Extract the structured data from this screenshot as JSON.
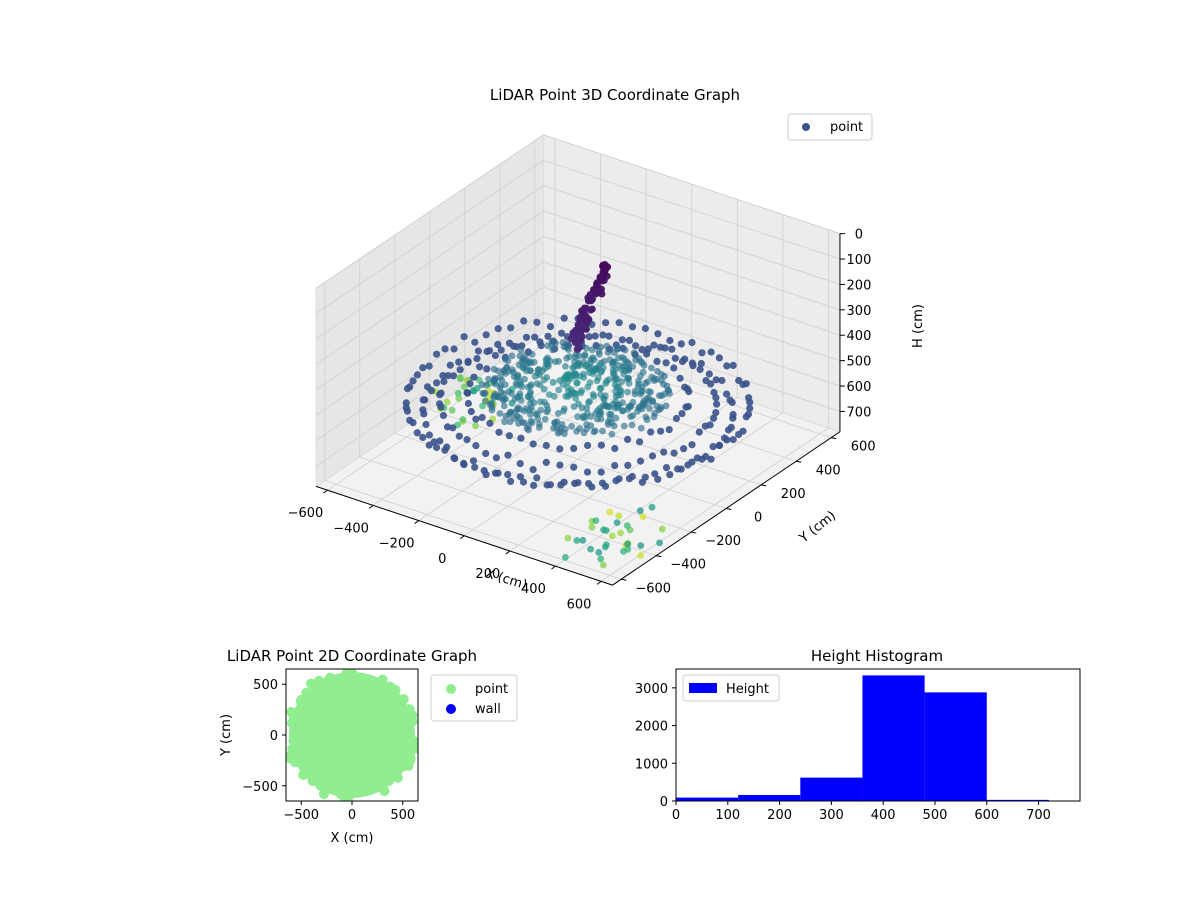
{
  "chart_data": [
    {
      "type": "scatter",
      "title": "LiDAR Point 3D Coordinate Graph",
      "xlabel": "X (cm)",
      "ylabel": "Y (cm)",
      "zlabel": "H (cm)",
      "xlim": [
        -650,
        650
      ],
      "ylim": [
        -650,
        650
      ],
      "zlim": [
        780,
        0
      ],
      "x_ticks": [
        "−600",
        "−400",
        "−200",
        "0",
        "200",
        "400",
        "600"
      ],
      "y_ticks": [
        "−600",
        "−400",
        "−200",
        "0",
        "200",
        "400",
        "600"
      ],
      "z_ticks": [
        "0",
        "100",
        "200",
        "300",
        "400",
        "500",
        "600",
        "700"
      ],
      "z_inverted": true,
      "grid": true,
      "legend": [
        "point"
      ],
      "legend_position": "upper-right",
      "colormap": "viridis",
      "series": [
        {
          "name": "point",
          "color": "#3b528b",
          "structure": [
            {
              "shape": "ring",
              "radius": 620,
              "height": 560
            },
            {
              "shape": "ring",
              "radius": 560,
              "height": 590
            },
            {
              "shape": "ring",
              "radius": 500,
              "height": 560
            },
            {
              "shape": "ring",
              "radius": 400,
              "height": 530
            },
            {
              "shape": "disk",
              "radius": 350,
              "height": 480
            },
            {
              "shape": "plume",
              "x": [
                -120,
                -80
              ],
              "y": [
                100,
                300
              ],
              "height": [
                180,
                420
              ]
            },
            {
              "shape": "outlier-band",
              "x": [
                -650,
                -350
              ],
              "y": [
                -100,
                150
              ],
              "height": [
                650,
                760
              ]
            },
            {
              "shape": "outlier-band",
              "x": [
                420,
                650
              ],
              "y": [
                -650,
                -300
              ],
              "height": [
                620,
                780
              ]
            }
          ]
        }
      ]
    },
    {
      "type": "scatter",
      "title": "LiDAR Point 2D Coordinate Graph",
      "xlabel": "X (cm)",
      "ylabel": "Y (cm)",
      "xlim": [
        -650,
        650
      ],
      "ylim": [
        -650,
        650
      ],
      "x_ticks": [
        "−500",
        "0",
        "500"
      ],
      "y_ticks": [
        "500",
        "0",
        "−500"
      ],
      "legend": [
        "point",
        "wall"
      ],
      "legend_position": "outside-right",
      "series": [
        {
          "name": "point",
          "color": "#90ee90",
          "structure": {
            "shape": "disk",
            "radius": 620
          }
        },
        {
          "name": "wall",
          "color": "#0000ff",
          "points": []
        }
      ]
    },
    {
      "type": "bar",
      "title": "Height Histogram",
      "xlim": [
        0,
        780
      ],
      "ylim": [
        0,
        3500
      ],
      "x_ticks": [
        "0",
        "100",
        "200",
        "300",
        "400",
        "500",
        "600",
        "700"
      ],
      "y_ticks": [
        "0",
        "1000",
        "2000",
        "3000"
      ],
      "legend": [
        "Height"
      ],
      "legend_position": "upper-left",
      "series": [
        {
          "name": "Height",
          "color": "#0000ff",
          "bin_edges": [
            0,
            120,
            240,
            360,
            480,
            600,
            720
          ],
          "values": [
            90,
            160,
            620,
            3330,
            2880,
            30
          ]
        }
      ]
    }
  ]
}
